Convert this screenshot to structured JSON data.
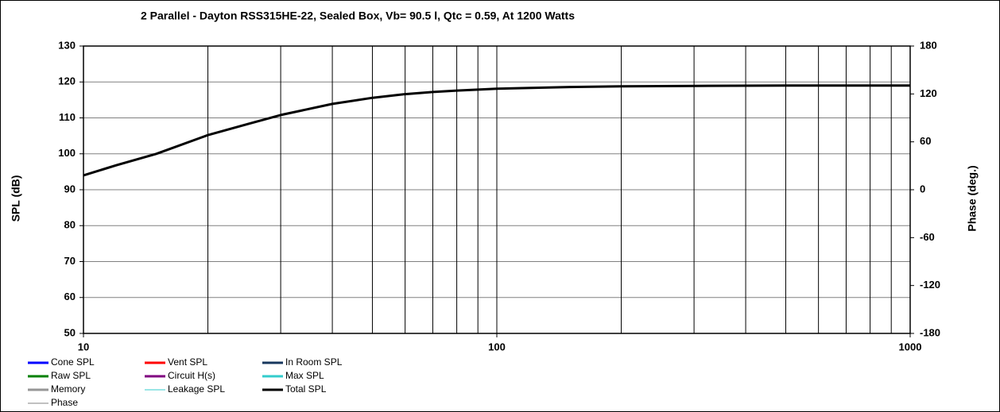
{
  "chart_data": {
    "type": "line",
    "title": "2 Parallel  - Dayton RSS315HE-22,  Sealed Box, Vb= 90.5 l,  Qtc = 0.59,  At 1200 Watts",
    "y_label": "SPL (dB)",
    "y2_label": "Phase (deg.)",
    "log_x": true,
    "x": [
      10,
      12,
      15,
      20,
      25,
      30,
      40,
      50,
      60,
      70,
      80,
      100,
      150,
      200,
      300,
      500,
      1000
    ],
    "xlim": [
      10,
      1000
    ],
    "xticks": [
      10,
      100,
      1000
    ],
    "x_minor_grid": [
      20,
      30,
      40,
      50,
      60,
      70,
      80,
      90,
      200,
      300,
      400,
      500,
      600,
      700,
      800,
      900
    ],
    "ylim": [
      50,
      130
    ],
    "yticks": [
      50,
      60,
      70,
      80,
      90,
      100,
      110,
      120,
      130
    ],
    "y2lim": [
      -180,
      180
    ],
    "y2ticks": [
      -180,
      -120,
      -60,
      0,
      60,
      120,
      180
    ],
    "grid": true,
    "series": [
      {
        "name": "Cone SPL",
        "color": "#0000ff",
        "width": 3,
        "values": [
          null,
          null,
          null,
          null,
          null,
          null,
          null,
          null,
          null,
          null,
          null,
          null,
          null,
          null,
          null,
          null,
          null
        ]
      },
      {
        "name": "Vent SPL",
        "color": "#ff0000",
        "width": 3,
        "values": [
          null,
          null,
          null,
          null,
          null,
          null,
          null,
          null,
          null,
          null,
          null,
          null,
          null,
          null,
          null,
          null,
          null
        ]
      },
      {
        "name": "In Room SPL",
        "color": "#17375e",
        "width": 3,
        "values": [
          null,
          null,
          null,
          null,
          null,
          null,
          null,
          null,
          null,
          null,
          null,
          null,
          null,
          null,
          null,
          null,
          null
        ]
      },
      {
        "name": "Raw SPL",
        "color": "#008000",
        "width": 3,
        "values": [
          null,
          null,
          null,
          null,
          null,
          null,
          null,
          null,
          null,
          null,
          null,
          null,
          null,
          null,
          null,
          null,
          null
        ]
      },
      {
        "name": "Circuit H(s)",
        "color": "#800080",
        "width": 3,
        "values": [
          null,
          null,
          null,
          null,
          null,
          null,
          null,
          null,
          null,
          null,
          null,
          null,
          null,
          null,
          null,
          null,
          null
        ]
      },
      {
        "name": "Max SPL",
        "color": "#33cccc",
        "width": 3,
        "values": [
          null,
          null,
          null,
          null,
          null,
          null,
          null,
          null,
          null,
          null,
          null,
          null,
          null,
          null,
          null,
          null,
          null
        ]
      },
      {
        "name": "Memory",
        "color": "#969696",
        "width": 3,
        "values": [
          null,
          null,
          null,
          null,
          null,
          null,
          null,
          null,
          null,
          null,
          null,
          null,
          null,
          null,
          null,
          null,
          null
        ]
      },
      {
        "name": "Leakage SPL",
        "color": "#33cccc",
        "width": 1,
        "values": [
          null,
          null,
          null,
          null,
          null,
          null,
          null,
          null,
          null,
          null,
          null,
          null,
          null,
          null,
          null,
          null,
          null
        ]
      },
      {
        "name": "Total SPL",
        "color": "#000000",
        "width": 3,
        "values": [
          94,
          96.8,
          100,
          105.2,
          108.3,
          110.8,
          113.9,
          115.6,
          116.6,
          117.2,
          117.6,
          118.1,
          118.6,
          118.8,
          118.9,
          119,
          119
        ]
      },
      {
        "name": "Phase",
        "color": "#808080",
        "width": 1,
        "values": [
          null,
          null,
          null,
          null,
          null,
          null,
          null,
          null,
          null,
          null,
          null,
          null,
          null,
          null,
          null,
          null,
          null
        ]
      }
    ]
  }
}
